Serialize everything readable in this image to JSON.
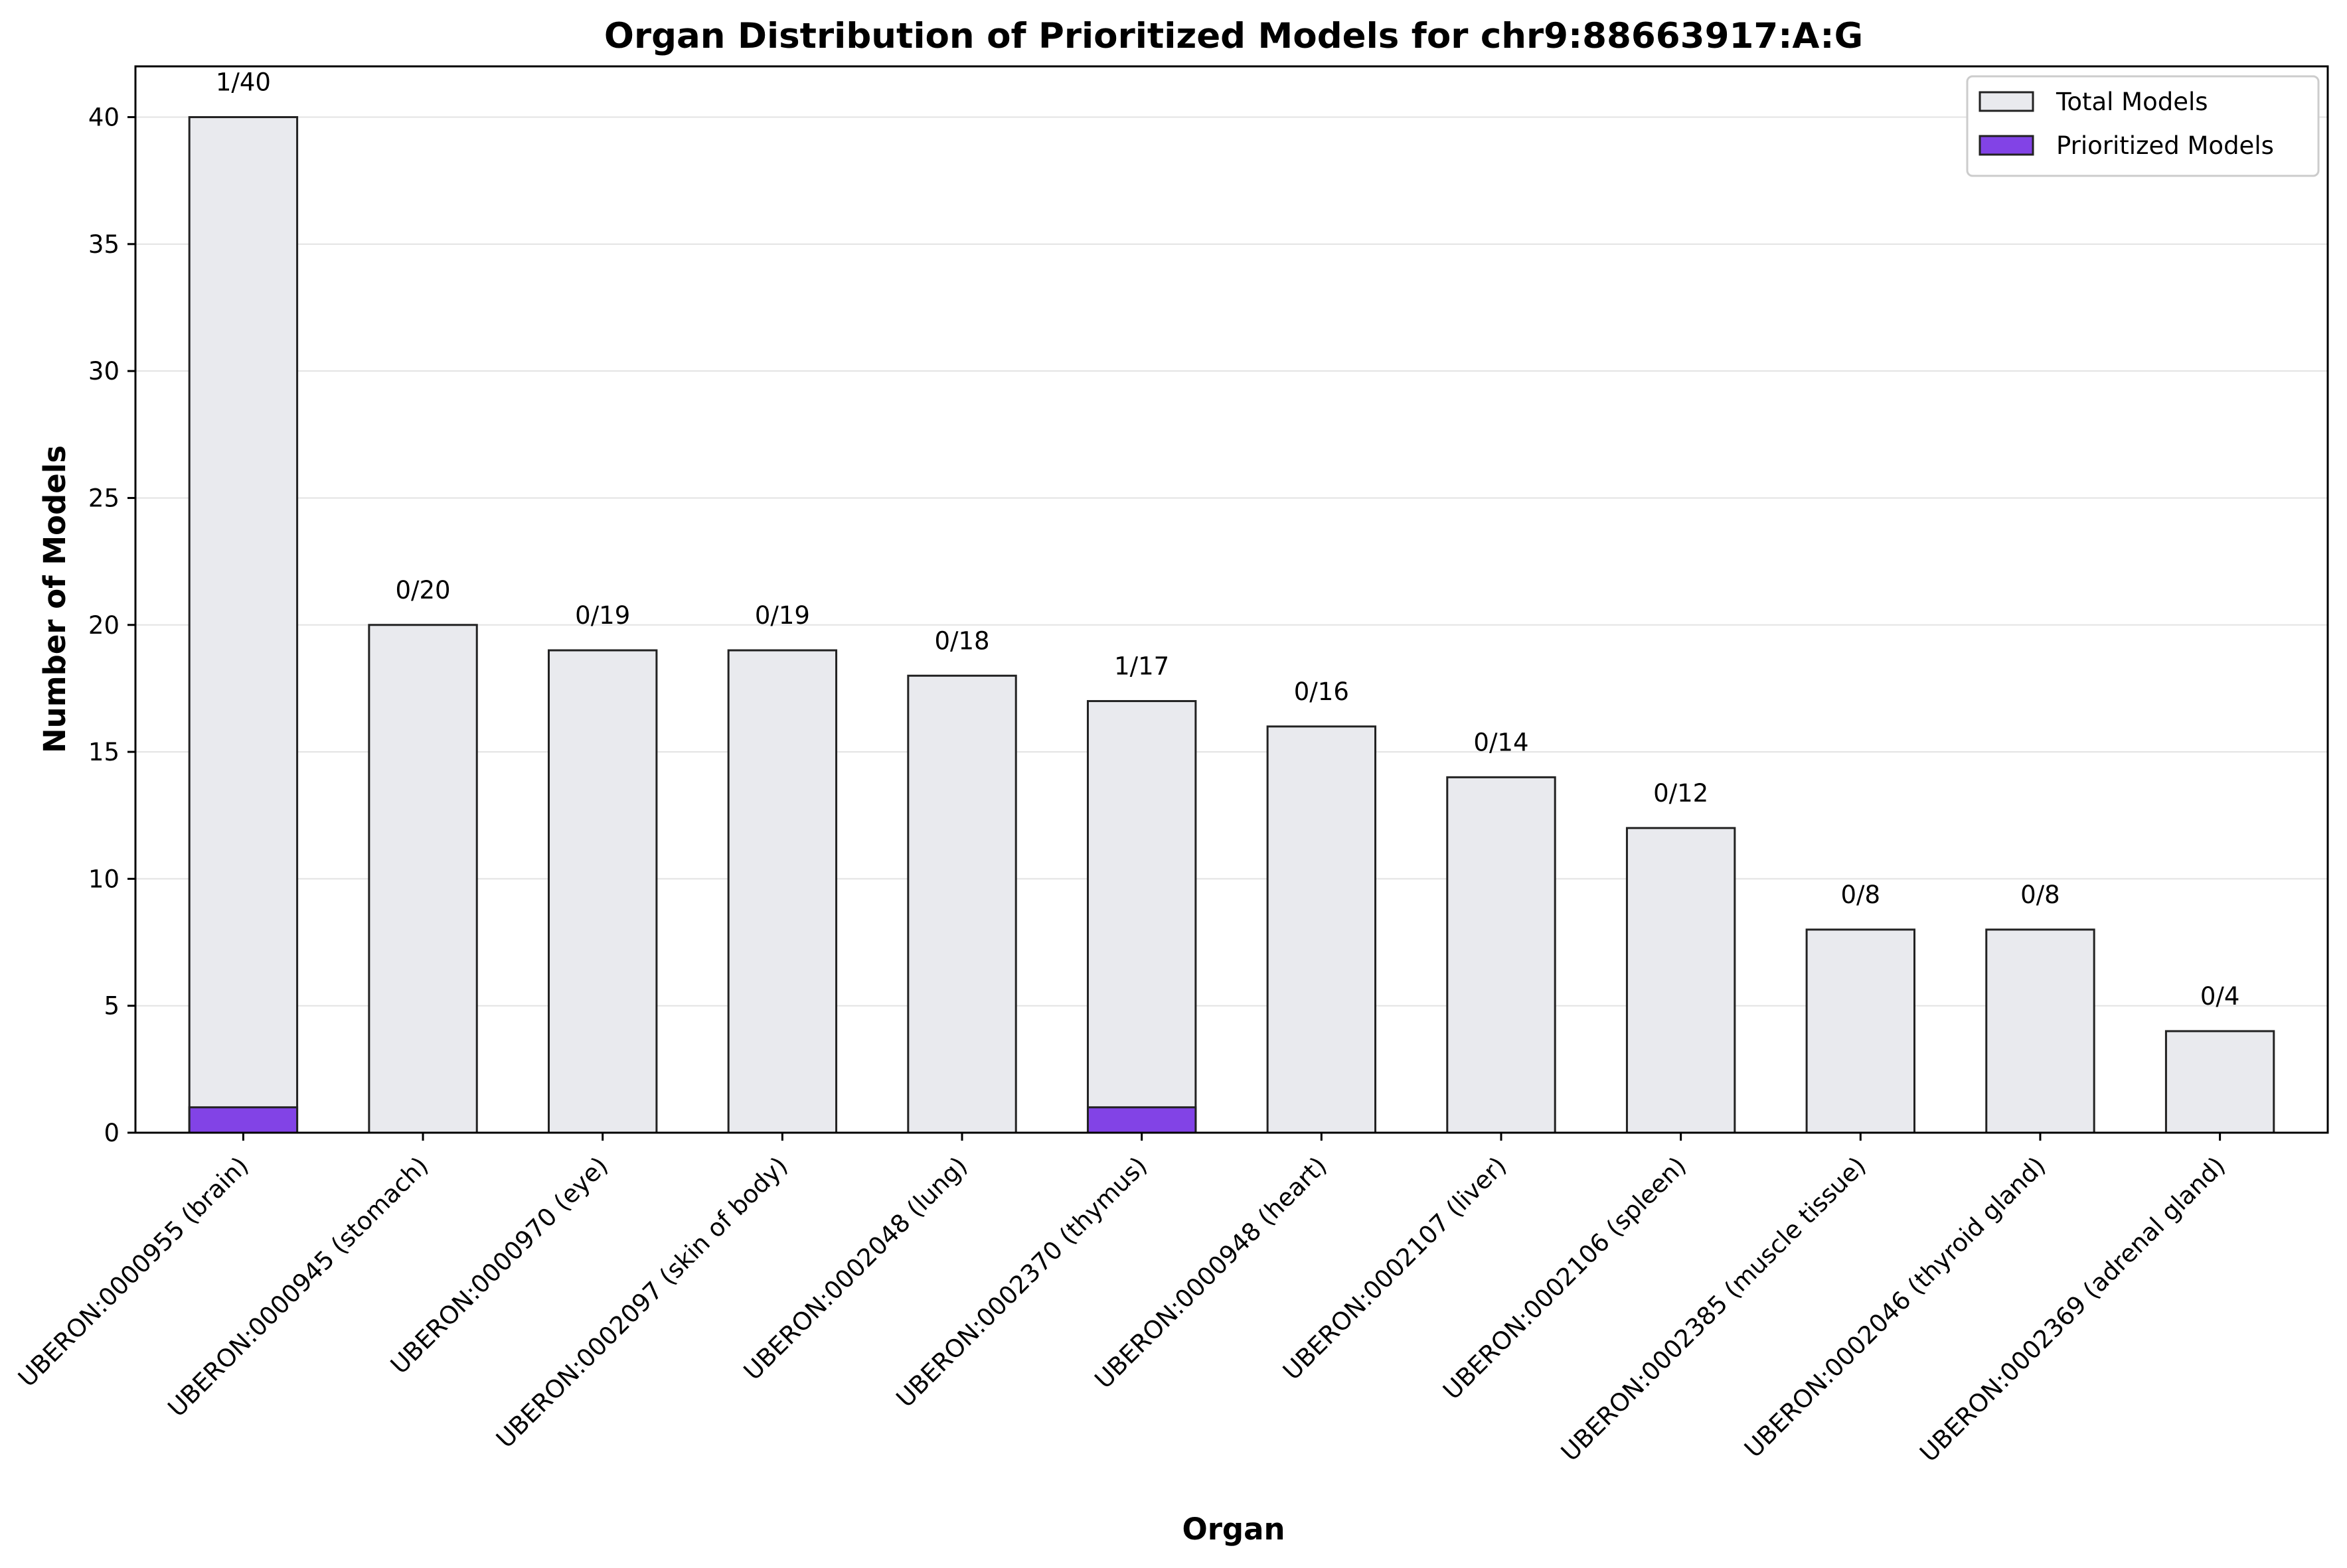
{
  "chart_data": {
    "type": "bar",
    "title": "Organ Distribution of Prioritized Models for chr9:88663917:A:G",
    "xlabel": "Organ",
    "ylabel": "Number of Models",
    "ylim": [
      0,
      42
    ],
    "yticks": [
      0,
      5,
      10,
      15,
      20,
      25,
      30,
      35,
      40
    ],
    "grid": "y",
    "legend_position": "top-right",
    "categories": [
      "UBERON:0000955 (brain)",
      "UBERON:0000945 (stomach)",
      "UBERON:0000970 (eye)",
      "UBERON:0002097 (skin of body)",
      "UBERON:0002048 (lung)",
      "UBERON:0002370 (thymus)",
      "UBERON:0000948 (heart)",
      "UBERON:0002107 (liver)",
      "UBERON:0002106 (spleen)",
      "UBERON:0002385 (muscle tissue)",
      "UBERON:0002046 (thyroid gland)",
      "UBERON:0002369 (adrenal gland)"
    ],
    "series": [
      {
        "name": "Total Models",
        "color": "#e9eaee",
        "values": [
          40,
          20,
          19,
          19,
          18,
          17,
          16,
          14,
          12,
          8,
          8,
          4
        ]
      },
      {
        "name": "Prioritized Models",
        "color": "#8243e6",
        "values": [
          1,
          0,
          0,
          0,
          0,
          1,
          0,
          0,
          0,
          0,
          0,
          0
        ]
      }
    ],
    "data_labels": [
      "1/40",
      "0/20",
      "0/19",
      "0/19",
      "0/18",
      "1/17",
      "0/16",
      "0/14",
      "0/12",
      "0/8",
      "0/8",
      "0/4"
    ]
  }
}
